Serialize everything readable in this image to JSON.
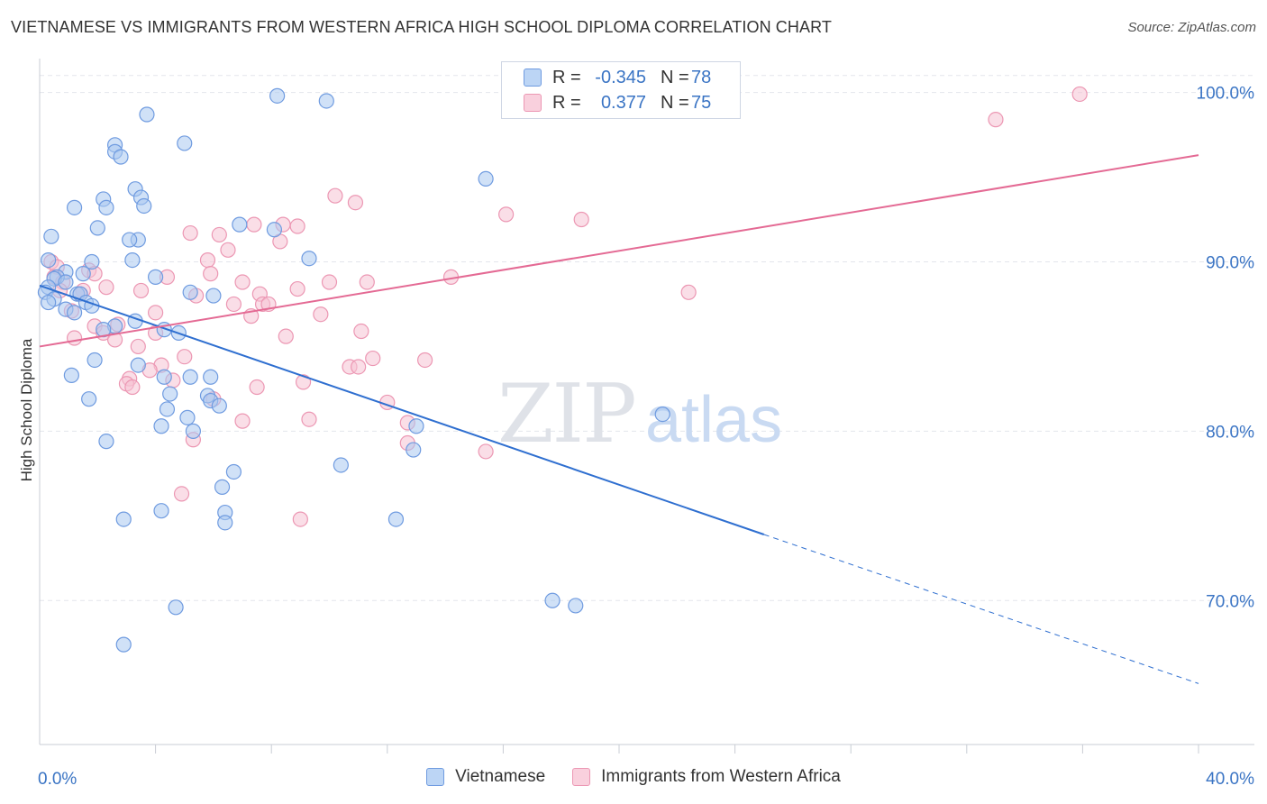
{
  "header": {
    "title": "VIETNAMESE VS IMMIGRANTS FROM WESTERN AFRICA HIGH SCHOOL DIPLOMA CORRELATION CHART",
    "source": "Source: ZipAtlas.com"
  },
  "watermark": {
    "part1": "ZIP",
    "part2": "atlas"
  },
  "legend": {
    "rows": [
      {
        "r_label": "R =",
        "r_value": "-0.345",
        "n_label": "N =",
        "n_value": "78"
      },
      {
        "r_label": "R =",
        "r_value": "0.377",
        "n_label": "N =",
        "n_value": "75"
      }
    ]
  },
  "bottom_legend": {
    "items": [
      {
        "label": "Vietnamese"
      },
      {
        "label": "Immigrants from Western Africa"
      }
    ]
  },
  "colors": {
    "blue_fill": "#aac8f0",
    "blue_stroke": "#6f9be0",
    "blue_line": "#2f6fd0",
    "pink_fill": "#f6c3d3",
    "pink_stroke": "#ec97b3",
    "pink_line": "#e46a94",
    "grid": "#e3e6ec",
    "tick_label": "#3a74c4"
  },
  "chart_data": {
    "type": "scatter",
    "title": "VIETNAMESE VS IMMIGRANTS FROM WESTERN AFRICA HIGH SCHOOL DIPLOMA CORRELATION CHART",
    "xlabel": "",
    "ylabel": "High School Diploma",
    "xlim": [
      0,
      40
    ],
    "ylim": [
      61.5,
      102
    ],
    "x_tick_labels": [
      "0.0%",
      "40.0%"
    ],
    "y_ticks": [
      70,
      80,
      90,
      100
    ],
    "y_tick_labels": [
      "70.0%",
      "80.0%",
      "90.0%",
      "100.0%"
    ],
    "grid": true,
    "legend_position": "top-center",
    "series": [
      {
        "name": "Vietnamese",
        "color": "#aac8f0",
        "R": -0.345,
        "N": 78,
        "trend": {
          "x0": 0,
          "y0": 88.6,
          "x1": 25,
          "y1": 73.9,
          "dashed_to_x": 40,
          "dashed_to_y": 65.1
        },
        "points": [
          [
            8.2,
            99.8
          ],
          [
            9.9,
            99.5
          ],
          [
            3.7,
            98.7
          ],
          [
            5,
            97
          ],
          [
            2.6,
            96.9
          ],
          [
            2.6,
            96.5
          ],
          [
            2.8,
            96.2
          ],
          [
            15.4,
            94.9
          ],
          [
            3.3,
            94.3
          ],
          [
            3.5,
            93.8
          ],
          [
            2.2,
            93.7
          ],
          [
            1.2,
            93.2
          ],
          [
            2.3,
            93.2
          ],
          [
            3.6,
            93.3
          ],
          [
            6.9,
            92.2
          ],
          [
            8.1,
            91.9
          ],
          [
            2.0,
            92
          ],
          [
            0.4,
            91.5
          ],
          [
            3.4,
            91.3
          ],
          [
            3.1,
            91.3
          ],
          [
            9.3,
            90.2
          ],
          [
            3.2,
            90.1
          ],
          [
            1.8,
            90
          ],
          [
            0.3,
            90.1
          ],
          [
            0.9,
            89.4
          ],
          [
            1.5,
            89.3
          ],
          [
            0.6,
            89.1
          ],
          [
            0.5,
            89
          ],
          [
            4.0,
            89.1
          ],
          [
            0.9,
            88.8
          ],
          [
            0.3,
            88.5
          ],
          [
            0.2,
            88.2
          ],
          [
            1.3,
            88.1
          ],
          [
            1.4,
            88.1
          ],
          [
            0.5,
            87.8
          ],
          [
            0.3,
            87.6
          ],
          [
            1.6,
            87.6
          ],
          [
            1.8,
            87.4
          ],
          [
            5.2,
            88.2
          ],
          [
            6.0,
            88.0
          ],
          [
            0.9,
            87.2
          ],
          [
            1.2,
            87.0
          ],
          [
            3.3,
            86.5
          ],
          [
            2.6,
            86.2
          ],
          [
            2.2,
            86.0
          ],
          [
            4.3,
            86.0
          ],
          [
            4.8,
            85.8
          ],
          [
            1.9,
            84.2
          ],
          [
            3.4,
            83.9
          ],
          [
            1.1,
            83.3
          ],
          [
            4.3,
            83.2
          ],
          [
            5.2,
            83.2
          ],
          [
            5.9,
            83.2
          ],
          [
            4.5,
            82.2
          ],
          [
            5.8,
            82.1
          ],
          [
            5.9,
            81.8
          ],
          [
            1.7,
            81.9
          ],
          [
            4.4,
            81.3
          ],
          [
            6.2,
            81.5
          ],
          [
            5.1,
            80.8
          ],
          [
            13.0,
            80.3
          ],
          [
            4.2,
            80.3
          ],
          [
            5.3,
            80.0
          ],
          [
            12.9,
            78.9
          ],
          [
            2.3,
            79.4
          ],
          [
            10.4,
            78.0
          ],
          [
            6.7,
            77.6
          ],
          [
            6.3,
            76.7
          ],
          [
            4.2,
            75.3
          ],
          [
            6.4,
            75.2
          ],
          [
            2.9,
            74.8
          ],
          [
            6.4,
            74.6
          ],
          [
            12.3,
            74.8
          ],
          [
            21.5,
            81.0
          ],
          [
            17.7,
            70.0
          ],
          [
            18.5,
            69.7
          ],
          [
            4.7,
            69.6
          ],
          [
            2.9,
            67.4
          ]
        ]
      },
      {
        "name": "Immigrants from Western Africa",
        "color": "#f6c3d3",
        "R": 0.377,
        "N": 75,
        "trend": {
          "x0": 0,
          "y0": 85.0,
          "x1": 40,
          "y1": 96.3
        },
        "points": [
          [
            17.0,
            100.1
          ],
          [
            35.9,
            99.9
          ],
          [
            33.0,
            98.4
          ],
          [
            10.2,
            93.9
          ],
          [
            10.9,
            93.5
          ],
          [
            16.1,
            92.8
          ],
          [
            18.7,
            92.5
          ],
          [
            7.4,
            92.2
          ],
          [
            8.4,
            92.2
          ],
          [
            8.9,
            92.1
          ],
          [
            5.2,
            91.7
          ],
          [
            6.2,
            91.6
          ],
          [
            8.3,
            91.2
          ],
          [
            6.5,
            90.7
          ],
          [
            5.8,
            90.1
          ],
          [
            0.4,
            90.0
          ],
          [
            0.6,
            89.7
          ],
          [
            1.7,
            89.5
          ],
          [
            5.9,
            89.3
          ],
          [
            1.9,
            89.3
          ],
          [
            4.4,
            89.1
          ],
          [
            0.5,
            89.1
          ],
          [
            0.8,
            88.8
          ],
          [
            14.2,
            89.1
          ],
          [
            11.3,
            88.8
          ],
          [
            7.0,
            88.8
          ],
          [
            10.0,
            88.8
          ],
          [
            2.3,
            88.5
          ],
          [
            8.9,
            88.4
          ],
          [
            3.5,
            88.3
          ],
          [
            1.5,
            88.3
          ],
          [
            0.7,
            88.3
          ],
          [
            1.4,
            88.1
          ],
          [
            7.6,
            88.1
          ],
          [
            5.4,
            88.0
          ],
          [
            22.4,
            88.2
          ],
          [
            6.7,
            87.5
          ],
          [
            7.7,
            87.5
          ],
          [
            7.9,
            87.5
          ],
          [
            4.0,
            87.0
          ],
          [
            9.7,
            86.9
          ],
          [
            7.3,
            86.8
          ],
          [
            1.1,
            87.1
          ],
          [
            1.9,
            86.2
          ],
          [
            2.7,
            86.3
          ],
          [
            11.1,
            85.9
          ],
          [
            4.0,
            85.8
          ],
          [
            2.2,
            85.8
          ],
          [
            8.5,
            85.6
          ],
          [
            1.2,
            85.5
          ],
          [
            2.6,
            85.4
          ],
          [
            3.4,
            85.0
          ],
          [
            5.0,
            84.4
          ],
          [
            11.5,
            84.3
          ],
          [
            13.3,
            84.2
          ],
          [
            4.2,
            83.9
          ],
          [
            10.7,
            83.8
          ],
          [
            11.0,
            83.8
          ],
          [
            3.8,
            83.6
          ],
          [
            3.1,
            83.1
          ],
          [
            4.6,
            83.0
          ],
          [
            9.1,
            82.9
          ],
          [
            3.0,
            82.8
          ],
          [
            3.2,
            82.6
          ],
          [
            7.5,
            82.6
          ],
          [
            6.0,
            81.9
          ],
          [
            12.0,
            81.7
          ],
          [
            9.3,
            80.7
          ],
          [
            7.0,
            80.6
          ],
          [
            12.7,
            80.5
          ],
          [
            5.3,
            79.5
          ],
          [
            12.7,
            79.3
          ],
          [
            15.4,
            78.8
          ],
          [
            4.9,
            76.3
          ],
          [
            9.0,
            74.8
          ]
        ]
      }
    ]
  }
}
